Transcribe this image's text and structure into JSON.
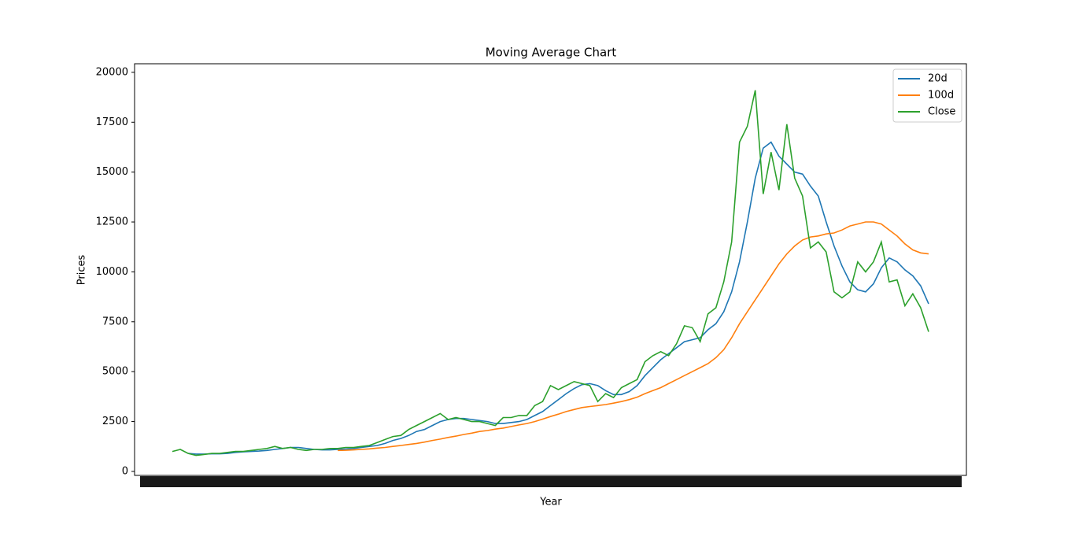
{
  "chart_data": {
    "type": "line",
    "title": "Moving Average Chart",
    "x_label": "Year",
    "y_label": "Prices",
    "ylim": [
      -200,
      20430
    ],
    "yticks": [
      0,
      2500,
      5000,
      7500,
      10000,
      12500,
      15000,
      17500,
      20000
    ],
    "legend": "upper right",
    "series": [
      {
        "name": "20d",
        "color": "#1f77b4",
        "values": [
          null,
          null,
          900,
          870,
          870,
          880,
          880,
          900,
          950,
          980,
          1000,
          1020,
          1050,
          1100,
          1150,
          1200,
          1200,
          1150,
          1100,
          1080,
          1080,
          1100,
          1120,
          1150,
          1200,
          1250,
          1300,
          1400,
          1550,
          1650,
          1800,
          2000,
          2100,
          2300,
          2500,
          2600,
          2650,
          2650,
          2600,
          2550,
          2500,
          2400,
          2400,
          2450,
          2500,
          2600,
          2800,
          3000,
          3300,
          3600,
          3900,
          4150,
          4350,
          4400,
          4300,
          4050,
          3850,
          3850,
          4000,
          4300,
          4800,
          5200,
          5600,
          5900,
          6200,
          6500,
          6600,
          6700,
          7100,
          7400,
          8000,
          9000,
          10500,
          12500,
          14700,
          16200,
          16500,
          15800,
          15400,
          15000,
          14900,
          14300,
          13800,
          12500,
          11300,
          10300,
          9500,
          9100,
          9000,
          9400,
          10200,
          10700,
          10500,
          10100,
          9800,
          9300,
          8400
        ]
      },
      {
        "name": "100d",
        "color": "#ff7f0e",
        "values": [
          null,
          null,
          null,
          null,
          null,
          null,
          null,
          null,
          null,
          null,
          null,
          null,
          null,
          null,
          null,
          null,
          null,
          null,
          null,
          null,
          null,
          1050,
          1060,
          1080,
          1100,
          1130,
          1170,
          1200,
          1250,
          1300,
          1350,
          1400,
          1470,
          1550,
          1620,
          1700,
          1770,
          1850,
          1920,
          2000,
          2050,
          2120,
          2170,
          2250,
          2330,
          2400,
          2500,
          2620,
          2750,
          2870,
          3000,
          3100,
          3200,
          3250,
          3300,
          3350,
          3420,
          3500,
          3600,
          3720,
          3900,
          4050,
          4200,
          4400,
          4600,
          4800,
          5000,
          5200,
          5400,
          5700,
          6100,
          6700,
          7400,
          8000,
          8600,
          9200,
          9800,
          10400,
          10900,
          11300,
          11600,
          11750,
          11800,
          11900,
          11950,
          12100,
          12300,
          12400,
          12500,
          12500,
          12400,
          12100,
          11800,
          11400,
          11100,
          10950,
          10900
        ]
      },
      {
        "name": "Close",
        "color": "#2ca02c",
        "values": [
          1000,
          1100,
          900,
          800,
          850,
          900,
          900,
          950,
          1000,
          1000,
          1050,
          1100,
          1150,
          1250,
          1150,
          1200,
          1100,
          1050,
          1100,
          1100,
          1150,
          1150,
          1200,
          1200,
          1250,
          1300,
          1450,
          1600,
          1750,
          1800,
          2100,
          2300,
          2500,
          2700,
          2900,
          2600,
          2700,
          2600,
          2500,
          2500,
          2400,
          2300,
          2700,
          2700,
          2800,
          2800,
          3300,
          3500,
          4300,
          4100,
          4300,
          4500,
          4400,
          4300,
          3500,
          3900,
          3700,
          4200,
          4400,
          4600,
          5500,
          5800,
          6000,
          5800,
          6400,
          7300,
          7200,
          6500,
          7900,
          8200,
          9500,
          11500,
          16500,
          17300,
          19100,
          13900,
          16000,
          14100,
          17400,
          14700,
          13800,
          11200,
          11500,
          11000,
          9000,
          8700,
          9000,
          10500,
          10000,
          10500,
          11500,
          9500,
          9600,
          8300,
          8900,
          8200,
          7000
        ]
      }
    ]
  }
}
